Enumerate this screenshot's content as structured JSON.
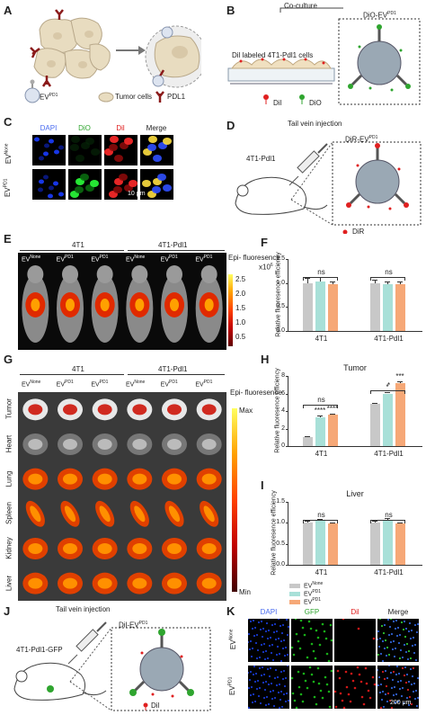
{
  "panels": {
    "A": {
      "letter": "A",
      "legend": {
        "ev": "EV",
        "ev_sup": "PD1",
        "tumor": "Tumor cells",
        "pdl1": "PDL1"
      }
    },
    "B": {
      "letter": "B",
      "coculture": "Co-culture",
      "dio_ev": "DiO-EV",
      "dio_ev_sup": "PD1",
      "dil_cells": "Dil labeled 4T1-Pdl1 cells",
      "legend_dil": "Dil",
      "legend_dio": "DiO"
    },
    "C": {
      "letter": "C",
      "headers": [
        "DAPI",
        "DiO",
        "Dil",
        "Merge"
      ],
      "header_colors": [
        "#4a6cf0",
        "#2fa52f",
        "#e02020",
        "#222222"
      ],
      "rows": [
        {
          "ev": "EV",
          "sup": "None"
        },
        {
          "ev": "EV",
          "sup": "PD1"
        }
      ],
      "scale": "10 μm"
    },
    "D": {
      "letter": "D",
      "injection": "Tail vein injection",
      "mouse": "4T1-Pdl1",
      "dir_ev": "DiR-EV",
      "dir_ev_sup": "PD1",
      "legend_dir": "DiR"
    },
    "E": {
      "letter": "E",
      "groups": [
        "4T1",
        "4T1-Pdl1"
      ],
      "cols": [
        {
          "ev": "EV",
          "sup": "None"
        },
        {
          "ev": "EV",
          "sup": "PD1"
        },
        {
          "ev": "EV",
          "sup": "PD1"
        },
        {
          "ev": "EV",
          "sup": "None"
        },
        {
          "ev": "EV",
          "sup": "PD1"
        },
        {
          "ev": "EV",
          "sup": "PD1"
        }
      ],
      "scale_title": "Epi-\nfluoresence",
      "scale_unit": "x10",
      "scale_unit_sup": "6",
      "scale_ticks": [
        "2.5",
        "2.0",
        "1.5",
        "1.0",
        "0.5"
      ]
    },
    "G": {
      "letter": "G",
      "groups": [
        "4T1",
        "4T1-Pdl1"
      ],
      "cols": [
        {
          "ev": "EV",
          "sup": "None"
        },
        {
          "ev": "EV",
          "sup": "PD1"
        },
        {
          "ev": "EV",
          "sup": "PD1"
        },
        {
          "ev": "EV",
          "sup": "None"
        },
        {
          "ev": "EV",
          "sup": "PD1"
        },
        {
          "ev": "EV",
          "sup": "PD1"
        }
      ],
      "organs": [
        "Tumor",
        "Heart",
        "Lung",
        "Spleen",
        "Kidney",
        "Liver"
      ],
      "scale_title": "Epi-\nfluoresence",
      "scale_max": "Max",
      "scale_min": "Min"
    },
    "J": {
      "letter": "J",
      "injection": "Tail vein injection",
      "mouse": "4T1-Pdl1-GFP",
      "dil_ev": "Dil-EV",
      "dil_ev_sup": "PD1",
      "legend_dil": "Dil"
    },
    "K": {
      "letter": "K",
      "headers": [
        "DAPI",
        "GFP",
        "Dil",
        "Merge"
      ],
      "header_colors": [
        "#4a6cf0",
        "#2fa52f",
        "#e02020",
        "#222222"
      ],
      "rows": [
        {
          "ev": "EV",
          "sup": "None"
        },
        {
          "ev": "EV",
          "sup": "PD1"
        }
      ],
      "scale": "200 μm"
    }
  },
  "legend_HI": {
    "entries": [
      {
        "ev": "EV",
        "sup": "None",
        "color": "#c8c8c8"
      },
      {
        "ev": "EV",
        "sup": "PD1",
        "color": "#a8e0d8"
      },
      {
        "ev": "EV",
        "sup": "PD1",
        "color": "#f6a877"
      }
    ]
  },
  "chart_data": [
    {
      "panel": "F",
      "type": "bar",
      "ylabel": "Relative fluoresence efficiency",
      "ylim": [
        0,
        1.5
      ],
      "yticks": [
        "0.0",
        "0.5",
        "1.0",
        "1.5"
      ],
      "categories": [
        "4T1",
        "4T1-Pdl1"
      ],
      "series": [
        {
          "values": [
            1.0,
            1.0
          ],
          "errors": [
            0.1,
            0.07
          ],
          "color": "#c8c8c8"
        },
        {
          "values": [
            1.03,
            0.97
          ],
          "errors": [
            0.1,
            0.06
          ],
          "color": "#a8e0d8"
        },
        {
          "values": [
            0.97,
            0.98
          ],
          "errors": [
            0.07,
            0.05
          ],
          "color": "#f6a877"
        }
      ],
      "annotations": [
        "ns",
        "ns"
      ]
    },
    {
      "panel": "H",
      "type": "bar",
      "title": "Tumor",
      "ylabel": "Relative fluoresence efficiency",
      "ylim": [
        0,
        8
      ],
      "yticks": [
        "0",
        "2",
        "4",
        "6",
        "8"
      ],
      "categories": [
        "4T1",
        "4T1-Pdl1"
      ],
      "series": [
        {
          "values": [
            1.0,
            4.8
          ],
          "errors": [
            0.1,
            0.15
          ],
          "color": "#c8c8c8"
        },
        {
          "values": [
            3.3,
            6.0
          ],
          "errors": [
            0.15,
            0.15
          ],
          "color": "#a8e0d8"
        },
        {
          "values": [
            3.6,
            7.2
          ],
          "errors": [
            0.1,
            0.2
          ],
          "color": "#f6a877"
        }
      ],
      "bar_labels": [
        [
          "",
          "****",
          "****"
        ],
        [
          "",
          "*",
          "***"
        ]
      ],
      "annotations": [
        "ns",
        "*"
      ]
    },
    {
      "panel": "I",
      "type": "bar",
      "title": "Liver",
      "ylabel": "Relative fluoresence efficiency",
      "ylim": [
        0,
        1.5
      ],
      "yticks": [
        "0.0",
        "0.5",
        "1.0",
        "1.5"
      ],
      "categories": [
        "4T1",
        "4T1-Pdl1"
      ],
      "series": [
        {
          "values": [
            1.0,
            1.0
          ],
          "errors": [
            0.04,
            0.05
          ],
          "color": "#c8c8c8"
        },
        {
          "values": [
            1.05,
            1.07
          ],
          "errors": [
            0.04,
            0.04
          ],
          "color": "#a8e0d8"
        },
        {
          "values": [
            0.98,
            0.98
          ],
          "errors": [
            0.03,
            0.03
          ],
          "color": "#f6a877"
        }
      ],
      "annotations": [
        "ns",
        "ns"
      ]
    }
  ]
}
